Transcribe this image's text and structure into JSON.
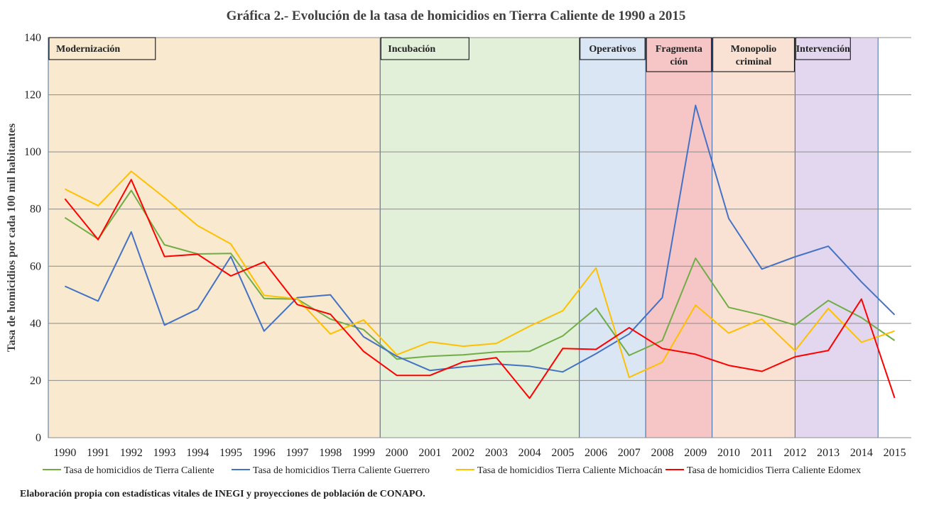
{
  "chart_data": {
    "type": "line",
    "title": "Gráfica 2.- Evolución de la tasa de homicidios en Tierra Caliente de 1990 a 2015",
    "ylabel": "Tasa de homicidios por cada 100 mil habitantes",
    "xlabel": "",
    "ylim": [
      0,
      140
    ],
    "yticks": [
      0,
      20,
      40,
      60,
      80,
      100,
      120,
      140
    ],
    "grid": true,
    "legend_position": "bottom",
    "x": [
      "1990",
      "1991",
      "1992",
      "1993",
      "1994",
      "1995",
      "1996",
      "1997",
      "1998",
      "1999",
      "2000",
      "2001",
      "2002",
      "2003",
      "2004",
      "2005",
      "2006",
      "2007",
      "2008",
      "2009",
      "2010",
      "2011",
      "2012",
      "2013",
      "2014",
      "2015"
    ],
    "series": [
      {
        "name": "Tasa de homicidios de Tierra Caliente",
        "color": "#70ad47",
        "values": [
          77,
          69.5,
          86.5,
          67.5,
          64.3,
          64.5,
          48.7,
          48.5,
          41.5,
          37.8,
          27.5,
          28.5,
          29,
          30,
          30.2,
          35.6,
          45.3,
          28.8,
          34,
          62.8,
          45.6,
          42.9,
          39.4,
          48,
          42,
          34
        ]
      },
      {
        "name": "Tasa de homicidios Tierra Caliente Guerrero",
        "color": "#4472c4",
        "values": [
          53,
          47.8,
          72,
          39.4,
          45,
          63.4,
          37.3,
          49,
          50,
          35.3,
          28.5,
          23.5,
          24.8,
          25.8,
          25,
          23,
          29.4,
          36.3,
          49,
          116.3,
          76.7,
          59,
          63.3,
          67,
          54.5,
          43
        ]
      },
      {
        "name": "Tasa de homicidios Tierra Caliente Michoacán",
        "color": "#ffc000",
        "values": [
          87,
          81.2,
          93.2,
          84,
          74.2,
          67.8,
          49.8,
          48.6,
          36.3,
          41.2,
          29,
          33.5,
          32,
          33,
          39,
          44.4,
          59.4,
          21.1,
          26.4,
          46.4,
          36.6,
          41.5,
          30.4,
          45.2,
          33.4,
          37.3
        ]
      },
      {
        "name": "Tasa de homicidios Tierra Caliente Edomex",
        "color": "#ff0000",
        "values": [
          83.6,
          69.3,
          90.3,
          63.4,
          64.2,
          56.6,
          61.5,
          46.6,
          43.2,
          30.2,
          21.8,
          21.8,
          26.5,
          28,
          13.8,
          31.2,
          30.9,
          38.5,
          31.2,
          29.2,
          25.3,
          23.2,
          28.3,
          30.5,
          48.5,
          13.9
        ]
      }
    ],
    "periods": [
      {
        "label": "Modernización",
        "start": "1990",
        "end": "2000",
        "color": "#f8e9cf"
      },
      {
        "label": "Incubación",
        "start": "2000",
        "end": "2006",
        "color": "#e2efd9"
      },
      {
        "label": "Operativos",
        "start": "2006",
        "end": "2008",
        "color": "#dae6f3"
      },
      {
        "label": "Fragmenta ción",
        "start": "2008",
        "end": "2010",
        "color": "#f6c6c6"
      },
      {
        "label": "Monopolio criminal",
        "start": "2010",
        "end": "2012.5",
        "color": "#f9e2d3"
      },
      {
        "label": "Intervención",
        "start": "2012.5",
        "end": "2015",
        "color": "#e2d7ee"
      }
    ]
  },
  "source_note": "Elaboración propia con estadísticas vitales de INEGI y proyecciones de población de CONAPO."
}
